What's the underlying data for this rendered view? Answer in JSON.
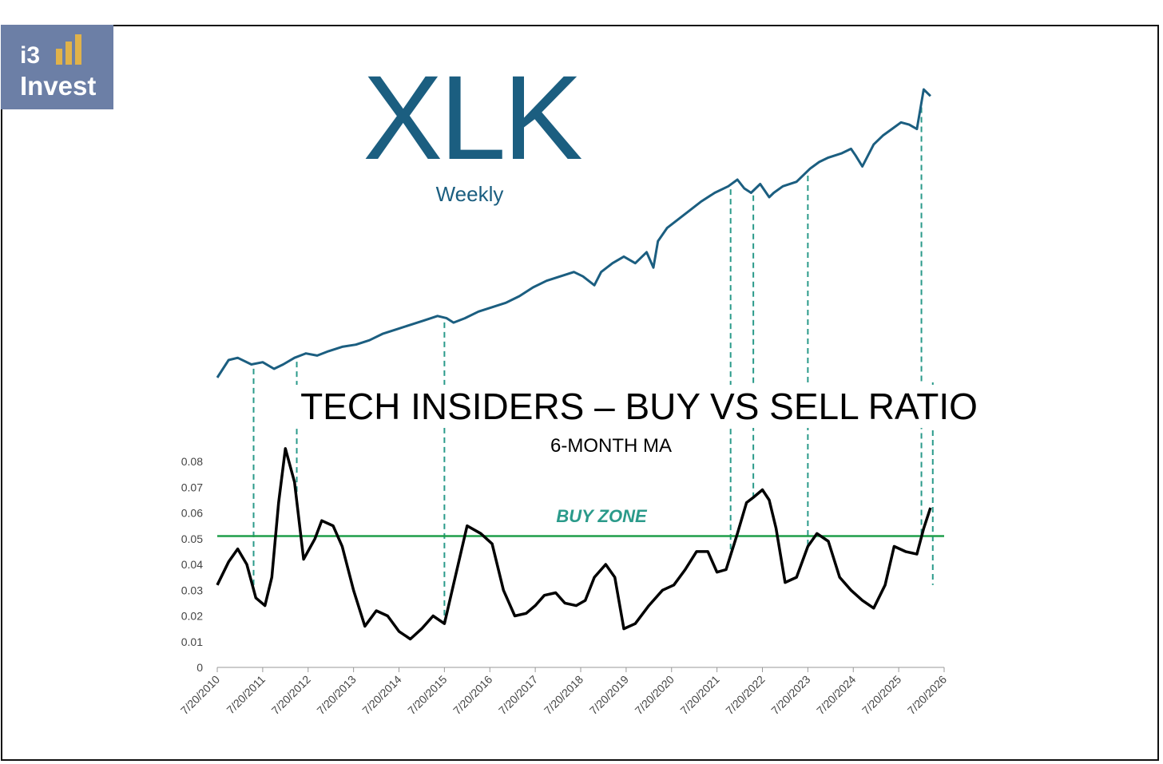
{
  "logo": {
    "line1": "i3",
    "line2": "Invest",
    "bar_color": "#e0b24a"
  },
  "chart_data": [
    {
      "type": "line",
      "title": "XLK",
      "subtitle": "Weekly",
      "color": "#1b5e80",
      "x": [
        2010.55,
        2010.8,
        2011.0,
        2011.3,
        2011.55,
        2011.8,
        2012.0,
        2012.25,
        2012.5,
        2012.75,
        2013.0,
        2013.3,
        2013.6,
        2013.9,
        2014.2,
        2014.5,
        2014.8,
        2015.1,
        2015.4,
        2015.6,
        2015.75,
        2016.0,
        2016.3,
        2016.6,
        2016.9,
        2017.2,
        2017.5,
        2017.8,
        2018.1,
        2018.4,
        2018.6,
        2018.85,
        2019.0,
        2019.25,
        2019.5,
        2019.75,
        2020.0,
        2020.15,
        2020.25,
        2020.45,
        2020.7,
        2020.95,
        2021.2,
        2021.5,
        2021.8,
        2022.0,
        2022.15,
        2022.3,
        2022.5,
        2022.7,
        2022.8,
        2023.0,
        2023.3,
        2023.6,
        2023.8,
        2024.0,
        2024.3,
        2024.5,
        2024.6,
        2024.75,
        2025.0,
        2025.2,
        2025.4,
        2025.6,
        2025.78,
        2025.95,
        2026.1,
        2026.25
      ],
      "y": [
        0,
        8,
        9,
        6,
        7,
        4,
        6,
        9,
        11,
        10,
        12,
        14,
        15,
        17,
        20,
        22,
        24,
        26,
        28,
        27,
        25,
        27,
        30,
        32,
        34,
        37,
        41,
        44,
        46,
        48,
        46,
        42,
        48,
        52,
        55,
        52,
        57,
        50,
        62,
        68,
        72,
        76,
        80,
        84,
        87,
        90,
        86,
        84,
        88,
        82,
        84,
        87,
        89,
        95,
        98,
        100,
        102,
        104,
        101,
        96,
        106,
        110,
        113,
        116,
        115,
        113,
        131,
        128
      ],
      "ylim": [
        0,
        131
      ]
    },
    {
      "type": "line",
      "title": "TECH INSIDERS – BUY VS SELL RATIO",
      "subtitle": "6-MONTH MA",
      "color": "#000000",
      "x": [
        2010.55,
        2010.8,
        2011.0,
        2011.2,
        2011.4,
        2011.6,
        2011.75,
        2011.9,
        2012.05,
        2012.25,
        2012.45,
        2012.7,
        2012.85,
        2013.1,
        2013.3,
        2013.55,
        2013.8,
        2014.05,
        2014.3,
        2014.55,
        2014.8,
        2015.05,
        2015.3,
        2015.55,
        2015.8,
        2016.05,
        2016.35,
        2016.6,
        2016.85,
        2017.1,
        2017.35,
        2017.55,
        2017.75,
        2018.0,
        2018.2,
        2018.45,
        2018.65,
        2018.85,
        2019.1,
        2019.3,
        2019.5,
        2019.75,
        2020.05,
        2020.35,
        2020.6,
        2020.85,
        2021.1,
        2021.35,
        2021.55,
        2021.75,
        2022.0,
        2022.2,
        2022.35,
        2022.55,
        2022.7,
        2022.85,
        2023.05,
        2023.3,
        2023.55,
        2023.75,
        2024.0,
        2024.25,
        2024.5,
        2024.75,
        2025.0,
        2025.25,
        2025.45,
        2025.7,
        2025.95,
        2026.1,
        2026.25
      ],
      "y": [
        0.032,
        0.041,
        0.046,
        0.04,
        0.027,
        0.024,
        0.035,
        0.064,
        0.085,
        0.072,
        0.042,
        0.05,
        0.057,
        0.055,
        0.047,
        0.03,
        0.016,
        0.022,
        0.02,
        0.014,
        0.011,
        0.015,
        0.02,
        0.017,
        0.036,
        0.055,
        0.052,
        0.048,
        0.03,
        0.02,
        0.021,
        0.024,
        0.028,
        0.029,
        0.025,
        0.024,
        0.026,
        0.035,
        0.04,
        0.035,
        0.015,
        0.017,
        0.024,
        0.03,
        0.032,
        0.038,
        0.045,
        0.045,
        0.037,
        0.038,
        0.052,
        0.064,
        0.066,
        0.069,
        0.065,
        0.054,
        0.033,
        0.035,
        0.047,
        0.052,
        0.049,
        0.035,
        0.03,
        0.026,
        0.023,
        0.032,
        0.047,
        0.045,
        0.044,
        0.054,
        0.062
      ],
      "yticks": [
        "0",
        "0.01",
        "0.02",
        "0.03",
        "0.04",
        "0.05",
        "0.06",
        "0.07",
        "0.08"
      ],
      "xticks": [
        "7/20/2010",
        "7/20/2011",
        "7/20/2012",
        "7/20/2013",
        "7/20/2014",
        "7/20/2015",
        "7/20/2016",
        "7/20/2017",
        "7/20/2018",
        "7/20/2019",
        "7/20/2020",
        "7/20/2021",
        "7/20/2022",
        "7/20/2023",
        "7/20/2024",
        "7/20/2025",
        "7/20/2026"
      ],
      "ylim": [
        0,
        0.08
      ],
      "xlim": [
        2010.55,
        2026.55
      ],
      "threshold": {
        "value": 0.051,
        "label": "BUY ZONE",
        "color": "#1f9e4a"
      },
      "markers_color": "#2a9a8a",
      "markers": [
        {
          "x": 2011.35,
          "high": 2011.35
        },
        {
          "x": 2012.3,
          "high": 2012.3
        },
        {
          "x": 2015.55,
          "high": 2015.55
        },
        {
          "x": 2021.85,
          "high": 2021.85
        },
        {
          "x": 2022.35,
          "high": 2022.35
        },
        {
          "x": 2023.55,
          "high": 2023.55
        },
        {
          "x": 2026.05,
          "high": 2026.05
        },
        {
          "x": 2026.3,
          "high": 2026.3
        }
      ]
    }
  ]
}
